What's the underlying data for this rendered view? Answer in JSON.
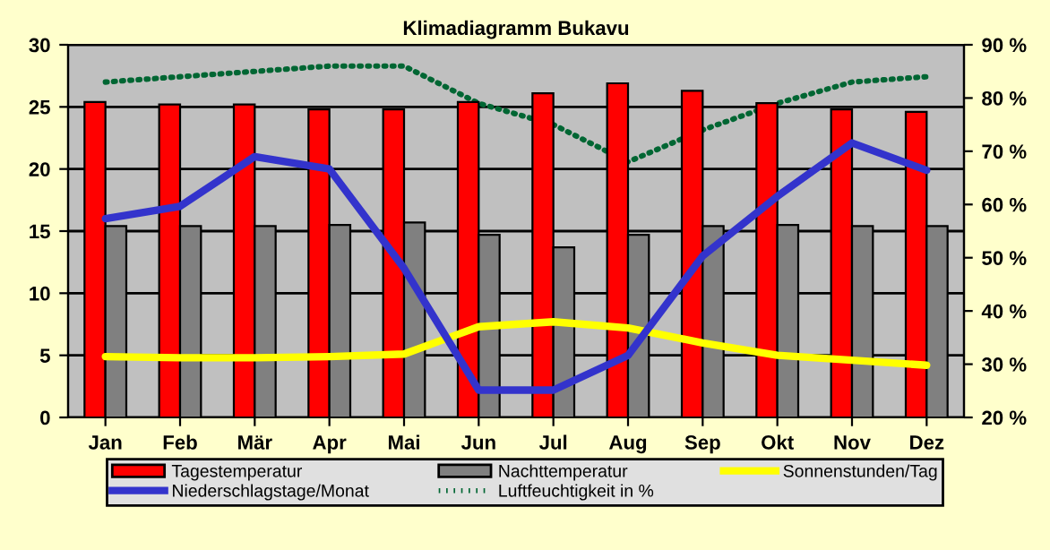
{
  "chart_data": {
    "type": "bar",
    "title": "Klimadiagramm Bukavu",
    "categories": [
      "Jan",
      "Feb",
      "Mär",
      "Apr",
      "Mai",
      "Jun",
      "Jul",
      "Aug",
      "Sep",
      "Okt",
      "Nov",
      "Dez"
    ],
    "series": [
      {
        "name": "Tagestemperatur",
        "color": "#ff0000",
        "values": [
          25.4,
          25.2,
          25.2,
          24.8,
          24.8,
          25.4,
          26.1,
          26.9,
          26.3,
          25.3,
          24.8,
          24.6
        ]
      },
      {
        "name": "Nachttemperatur",
        "color": "#808080",
        "values": [
          15.4,
          15.4,
          15.4,
          15.5,
          15.7,
          14.7,
          13.7,
          14.7,
          15.4,
          15.5,
          15.4,
          15.4
        ]
      },
      {
        "name": "Sonnenstunden/Tag",
        "type": "line",
        "color": "#ffff00",
        "values": [
          4.9,
          4.8,
          4.8,
          4.9,
          5.1,
          7.3,
          7.7,
          7.2,
          6.0,
          5.0,
          4.6,
          4.2
        ]
      },
      {
        "name": "Niederschlagstage/Monat",
        "type": "line",
        "color": "#3333cc",
        "values": [
          16.0,
          17.0,
          21.0,
          20.0,
          12.0,
          2.2,
          2.2,
          5.0,
          13.0,
          17.8,
          22.1,
          19.9
        ]
      },
      {
        "name": "Luftfeuchtigkeit in %",
        "type": "line",
        "color": "#006633",
        "axis": "y2",
        "line_style": "dotted",
        "values": [
          83,
          84,
          85,
          86,
          86,
          79,
          75,
          68,
          74,
          79,
          83,
          84
        ]
      }
    ],
    "ylim": [
      0,
      30
    ],
    "yticks": [
      0,
      5,
      10,
      15,
      20,
      25,
      30
    ],
    "y2lim": [
      20,
      90
    ],
    "y2ticks": [
      {
        "value": 20,
        "label": "20 %"
      },
      {
        "value": 30,
        "label": "30 %"
      },
      {
        "value": 40,
        "label": "40 %"
      },
      {
        "value": 50,
        "label": "50 %"
      },
      {
        "value": 60,
        "label": "60 %"
      },
      {
        "value": 70,
        "label": "70 %"
      },
      {
        "value": 80,
        "label": "80 %"
      },
      {
        "value": 90,
        "label": "90 %"
      }
    ],
    "grid": "y",
    "legend": "bottom",
    "marker": "none"
  }
}
